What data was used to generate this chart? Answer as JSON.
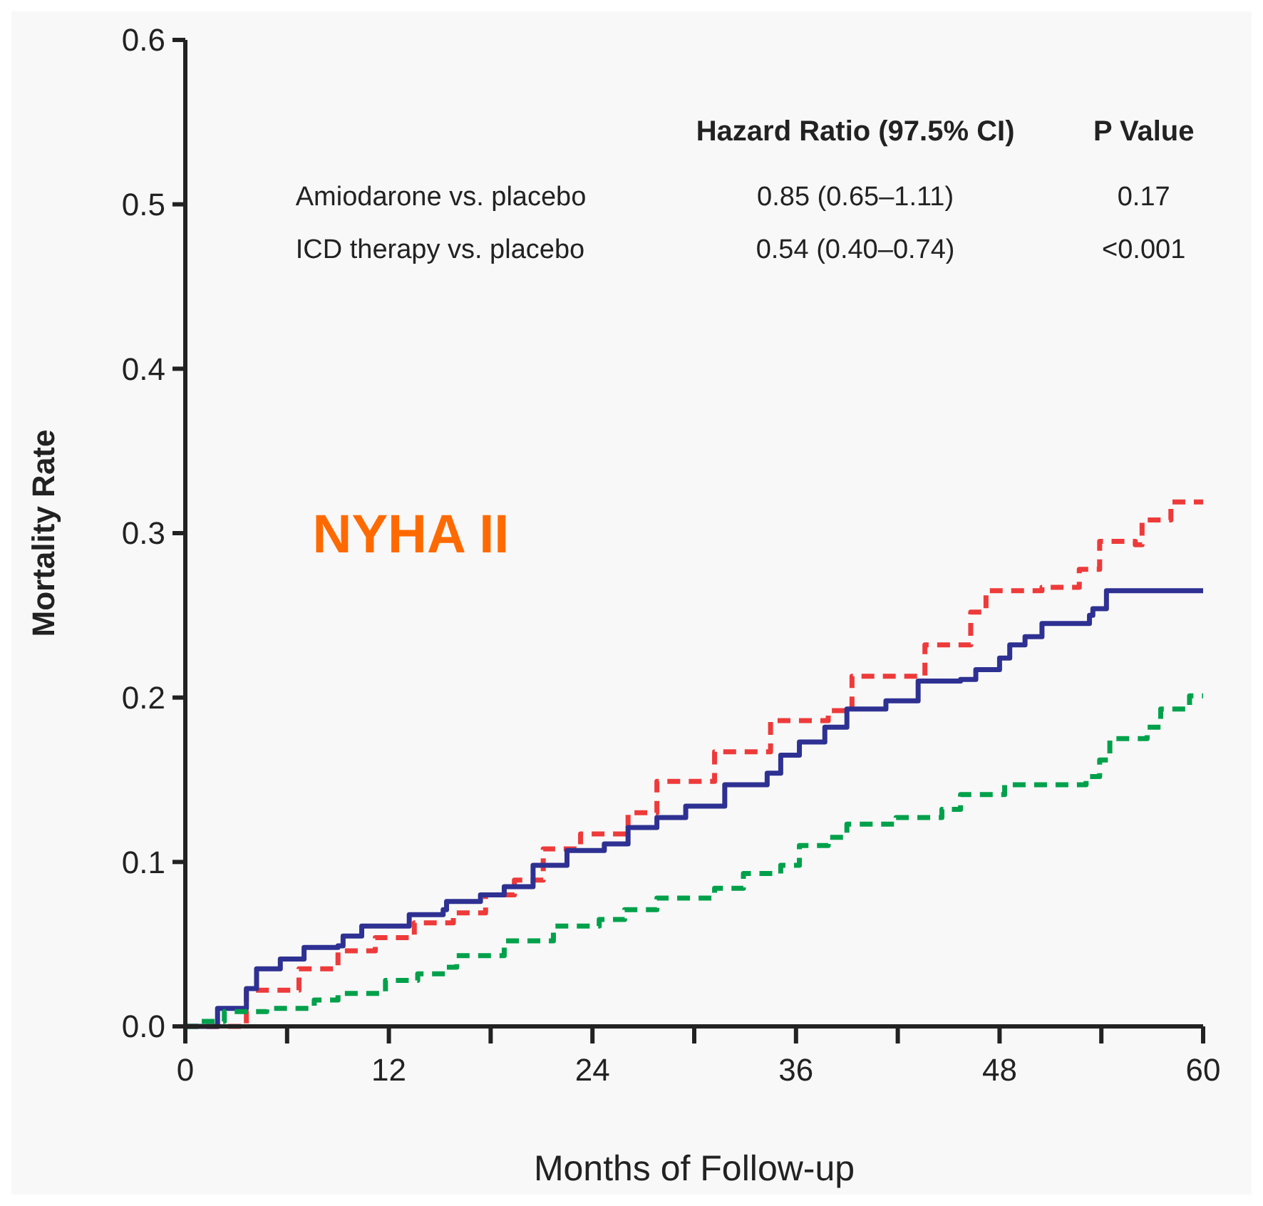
{
  "chart_data": {
    "type": "step",
    "xlabel": "Months of Follow-up",
    "ylabel": "Mortality Rate",
    "xlim": [
      0,
      60
    ],
    "ylim": [
      0,
      0.6
    ],
    "xticks": [
      0,
      {
        "value": 6,
        "label": null
      },
      12,
      {
        "value": 18,
        "label": null
      },
      24,
      {
        "value": 30,
        "label": null
      },
      36,
      {
        "value": 42,
        "label": null
      },
      48,
      {
        "value": 54,
        "label": null
      },
      60
    ],
    "yticks": [
      {
        "value": 0,
        "label": "0.0"
      },
      0.1,
      0.2,
      0.3,
      0.4,
      0.5,
      0.6
    ],
    "grid": false,
    "marker": "none",
    "annotations": [
      "NYHA II",
      "Hazard Ratio (97.5% CI)",
      "P Value",
      "Amiodarone vs. placebo",
      "0.85 (0.65–1.11)",
      "0.17",
      "ICD therapy vs. placebo",
      "0.54 (0.40–0.74)",
      "<0.001"
    ],
    "series": [
      {
        "color": "#ee3a3a",
        "line_style": "dashed",
        "x": [
          0,
          3.6,
          6.7,
          9.0,
          11.2,
          13.5,
          15.8,
          17.7,
          19.4,
          21.1,
          23.3,
          26.1,
          27.8,
          31.2,
          34.5,
          37.9,
          39.3,
          41.3,
          43.6,
          46.3,
          47.2,
          50.5,
          52.7,
          53.9,
          56.0,
          56.4,
          58.1,
          60
        ],
        "values": [
          0,
          0.022,
          0.035,
          0.046,
          0.054,
          0.063,
          0.069,
          0.08,
          0.089,
          0.108,
          0.117,
          0.13,
          0.149,
          0.167,
          0.186,
          0.192,
          0.213,
          0.213,
          0.232,
          0.252,
          0.265,
          0.267,
          0.278,
          0.295,
          0.293,
          0.308,
          0.319,
          0.319
        ]
      },
      {
        "color": "#2e3192",
        "line_style": "solid",
        "x": [
          0,
          1.9,
          3.6,
          4.2,
          5.6,
          7.0,
          9.0,
          9.3,
          10.4,
          13.2,
          15.2,
          15.4,
          17.4,
          18.8,
          20.5,
          22.5,
          24.7,
          26.1,
          27.8,
          29.5,
          31.8,
          34.3,
          35.1,
          36.2,
          37.7,
          39.0,
          41.3,
          43.2,
          45.7,
          46.6,
          48.0,
          48.6,
          49.5,
          50.5,
          53.3,
          53.5,
          54.3,
          60
        ],
        "values": [
          0,
          0.011,
          0.023,
          0.035,
          0.041,
          0.048,
          0.049,
          0.055,
          0.061,
          0.068,
          0.071,
          0.076,
          0.08,
          0.085,
          0.098,
          0.107,
          0.111,
          0.121,
          0.127,
          0.134,
          0.147,
          0.154,
          0.165,
          0.173,
          0.182,
          0.193,
          0.198,
          0.21,
          0.211,
          0.217,
          0.224,
          0.232,
          0.237,
          0.245,
          0.25,
          0.254,
          0.265,
          0.265
        ]
      },
      {
        "color": "#00a14b",
        "line_style": "dashed",
        "x": [
          0,
          0.8,
          2.3,
          4.8,
          7.6,
          9.0,
          11.8,
          13.7,
          15.4,
          16.0,
          18.8,
          21.7,
          24.4,
          25.9,
          27.8,
          31.2,
          32.9,
          35.1,
          36.2,
          37.9,
          39.0,
          41.9,
          44.6,
          45.7,
          48.3,
          53.1,
          53.9,
          54.5,
          56.7,
          57.5,
          59.2,
          60
        ],
        "values": [
          0,
          0.003,
          0.009,
          0.011,
          0.016,
          0.02,
          0.028,
          0.032,
          0.036,
          0.043,
          0.052,
          0.061,
          0.065,
          0.071,
          0.078,
          0.084,
          0.093,
          0.098,
          0.11,
          0.115,
          0.123,
          0.127,
          0.132,
          0.141,
          0.147,
          0.152,
          0.162,
          0.175,
          0.182,
          0.193,
          0.201,
          0.201
        ]
      }
    ]
  }
}
